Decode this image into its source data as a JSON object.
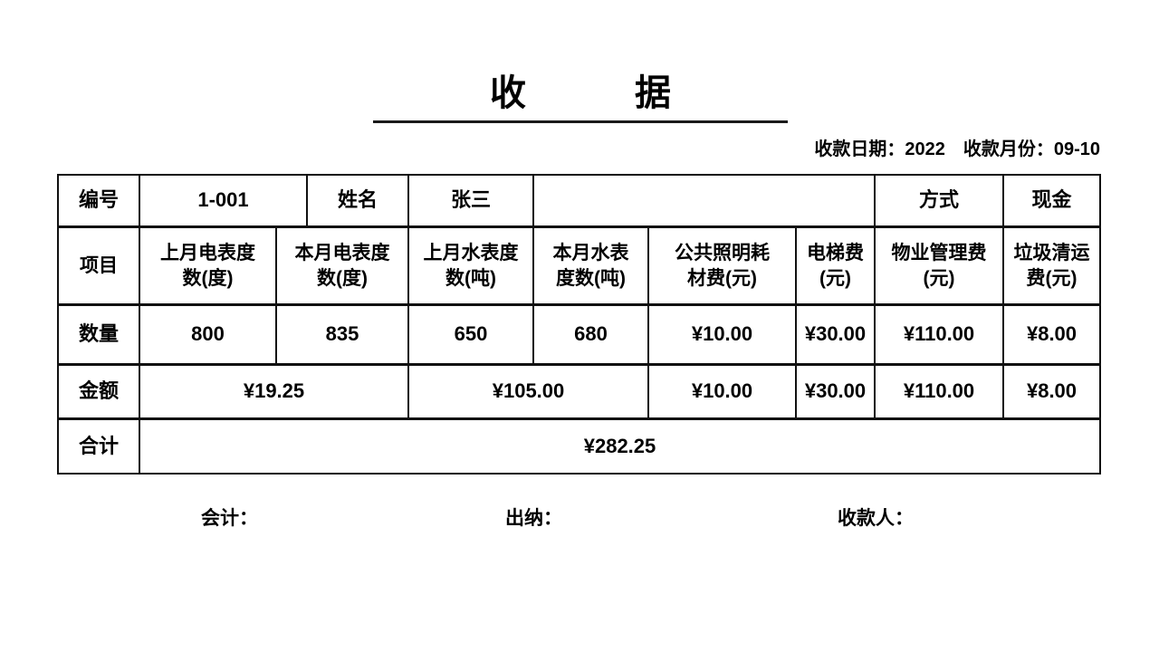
{
  "header": {
    "title": "收　　　据",
    "date_text": "收款日期：2022",
    "month_text": "收款月份：09-10"
  },
  "table": {
    "info_row": {
      "id_label": "编号",
      "id_value": "1-001",
      "name_label": "姓名",
      "name_value": "张三",
      "blank": "",
      "method_label": "方式",
      "method_value": "现金"
    },
    "item_row": {
      "label": "项目",
      "columns": [
        "上月电表度\n数(度)",
        "本月电表度\n数(度)",
        "上月水表度\n数(吨)",
        "本月水表\n度数(吨)",
        "公共照明耗\n材费(元)",
        "电梯费\n(元)",
        "物业管理费\n(元)",
        "垃圾清运\n费(元)"
      ]
    },
    "quantity_row": {
      "label": "数量",
      "values": [
        "800",
        "835",
        "650",
        "680",
        "¥10.00",
        "¥30.00",
        "¥110.00",
        "¥8.00"
      ]
    },
    "amount_row": {
      "label": "金额",
      "values": [
        "¥19.25",
        "¥105.00",
        "¥10.00",
        "¥30.00",
        "¥110.00",
        "¥8.00"
      ]
    },
    "total_row": {
      "label": "合计",
      "value": "¥282.25"
    }
  },
  "footer": {
    "accountant_label": "会计：",
    "cashier_label": "出纳：",
    "payee_label": "收款人："
  },
  "colors": {
    "text": "#000000",
    "background": "#ffffff",
    "border": "#111111"
  }
}
